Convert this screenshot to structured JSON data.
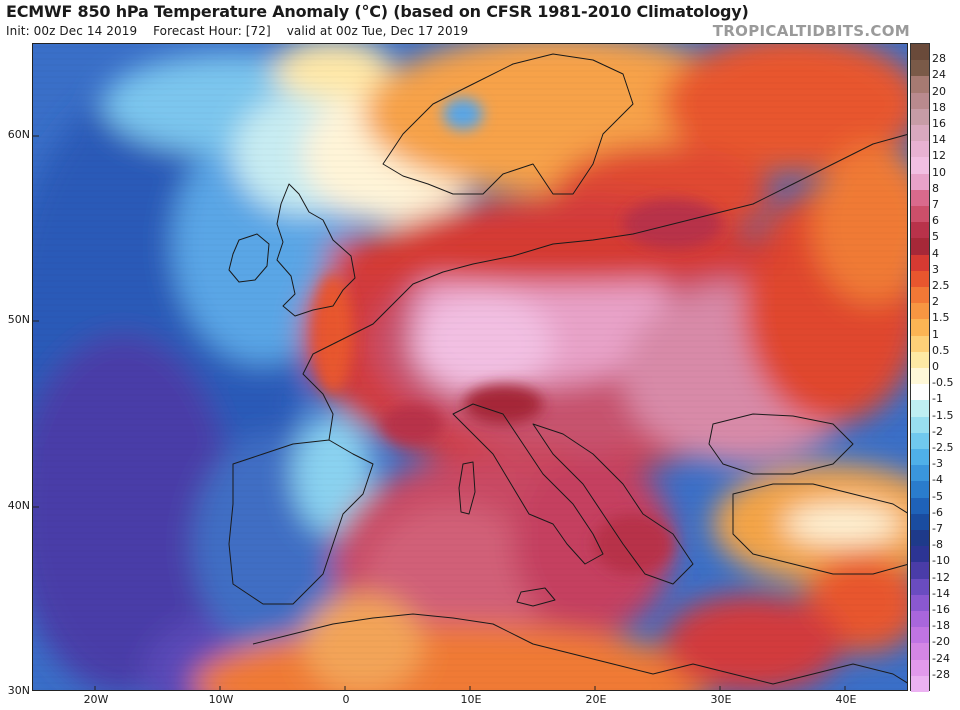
{
  "header": {
    "title": "ECMWF 850 hPa Temperature Anomaly (°C) (based on CFSR 1981-2010 Climatology)",
    "init": "Init: 00z Dec 14 2019",
    "forecast_hour": "Forecast Hour: [72]",
    "valid": "valid at 00z Tue, Dec 17 2019",
    "brand": "TROPICALTIDBITS.COM"
  },
  "map": {
    "lat_labels": [
      "60N",
      "50N",
      "40N",
      "30N"
    ],
    "lon_labels": [
      "20W",
      "10W",
      "0",
      "10E",
      "20E",
      "30E",
      "40E"
    ],
    "lon_range": [
      -25,
      45
    ],
    "lat_range": [
      30,
      65
    ],
    "land_outline_color": "#1a1a1a"
  },
  "colorbar": {
    "levels": [
      "28",
      "24",
      "20",
      "18",
      "16",
      "14",
      "12",
      "10",
      "8",
      "7",
      "6",
      "5",
      "4",
      "3",
      "2.5",
      "2",
      "1.5",
      "1",
      "0.5",
      "0",
      "-0.5",
      "-1",
      "-1.5",
      "-2",
      "-2.5",
      "-3",
      "-4",
      "-5",
      "-6",
      "-7",
      "-8",
      "-10",
      "-12",
      "-14",
      "-16",
      "-18",
      "-20",
      "-24",
      "-28"
    ],
    "colors": [
      "#7a5a48",
      "#a67a72",
      "#b98a8e",
      "#c79ca6",
      "#d9a8be",
      "#e8b2d2",
      "#f2bfe2",
      "#e8a2c8",
      "#d96a8c",
      "#cc4f6a",
      "#b8324a",
      "#a62838",
      "#d63a32",
      "#e8562e",
      "#f27836",
      "#f79642",
      "#fbb454",
      "#fdd078",
      "#fde9a4",
      "#fff8d8",
      "#ffffff",
      "#bfeef2",
      "#98def0",
      "#70c8ee",
      "#4fb0e8",
      "#3a96dc",
      "#2a7ccc",
      "#1f62b8",
      "#1a4ca0",
      "#1e3a8a",
      "#2c3494",
      "#4a3ca8",
      "#6a4cc0",
      "#8a58d0",
      "#a866dc",
      "#c074e2",
      "#d486e4",
      "#e29aec",
      "#ecb2f2"
    ]
  }
}
